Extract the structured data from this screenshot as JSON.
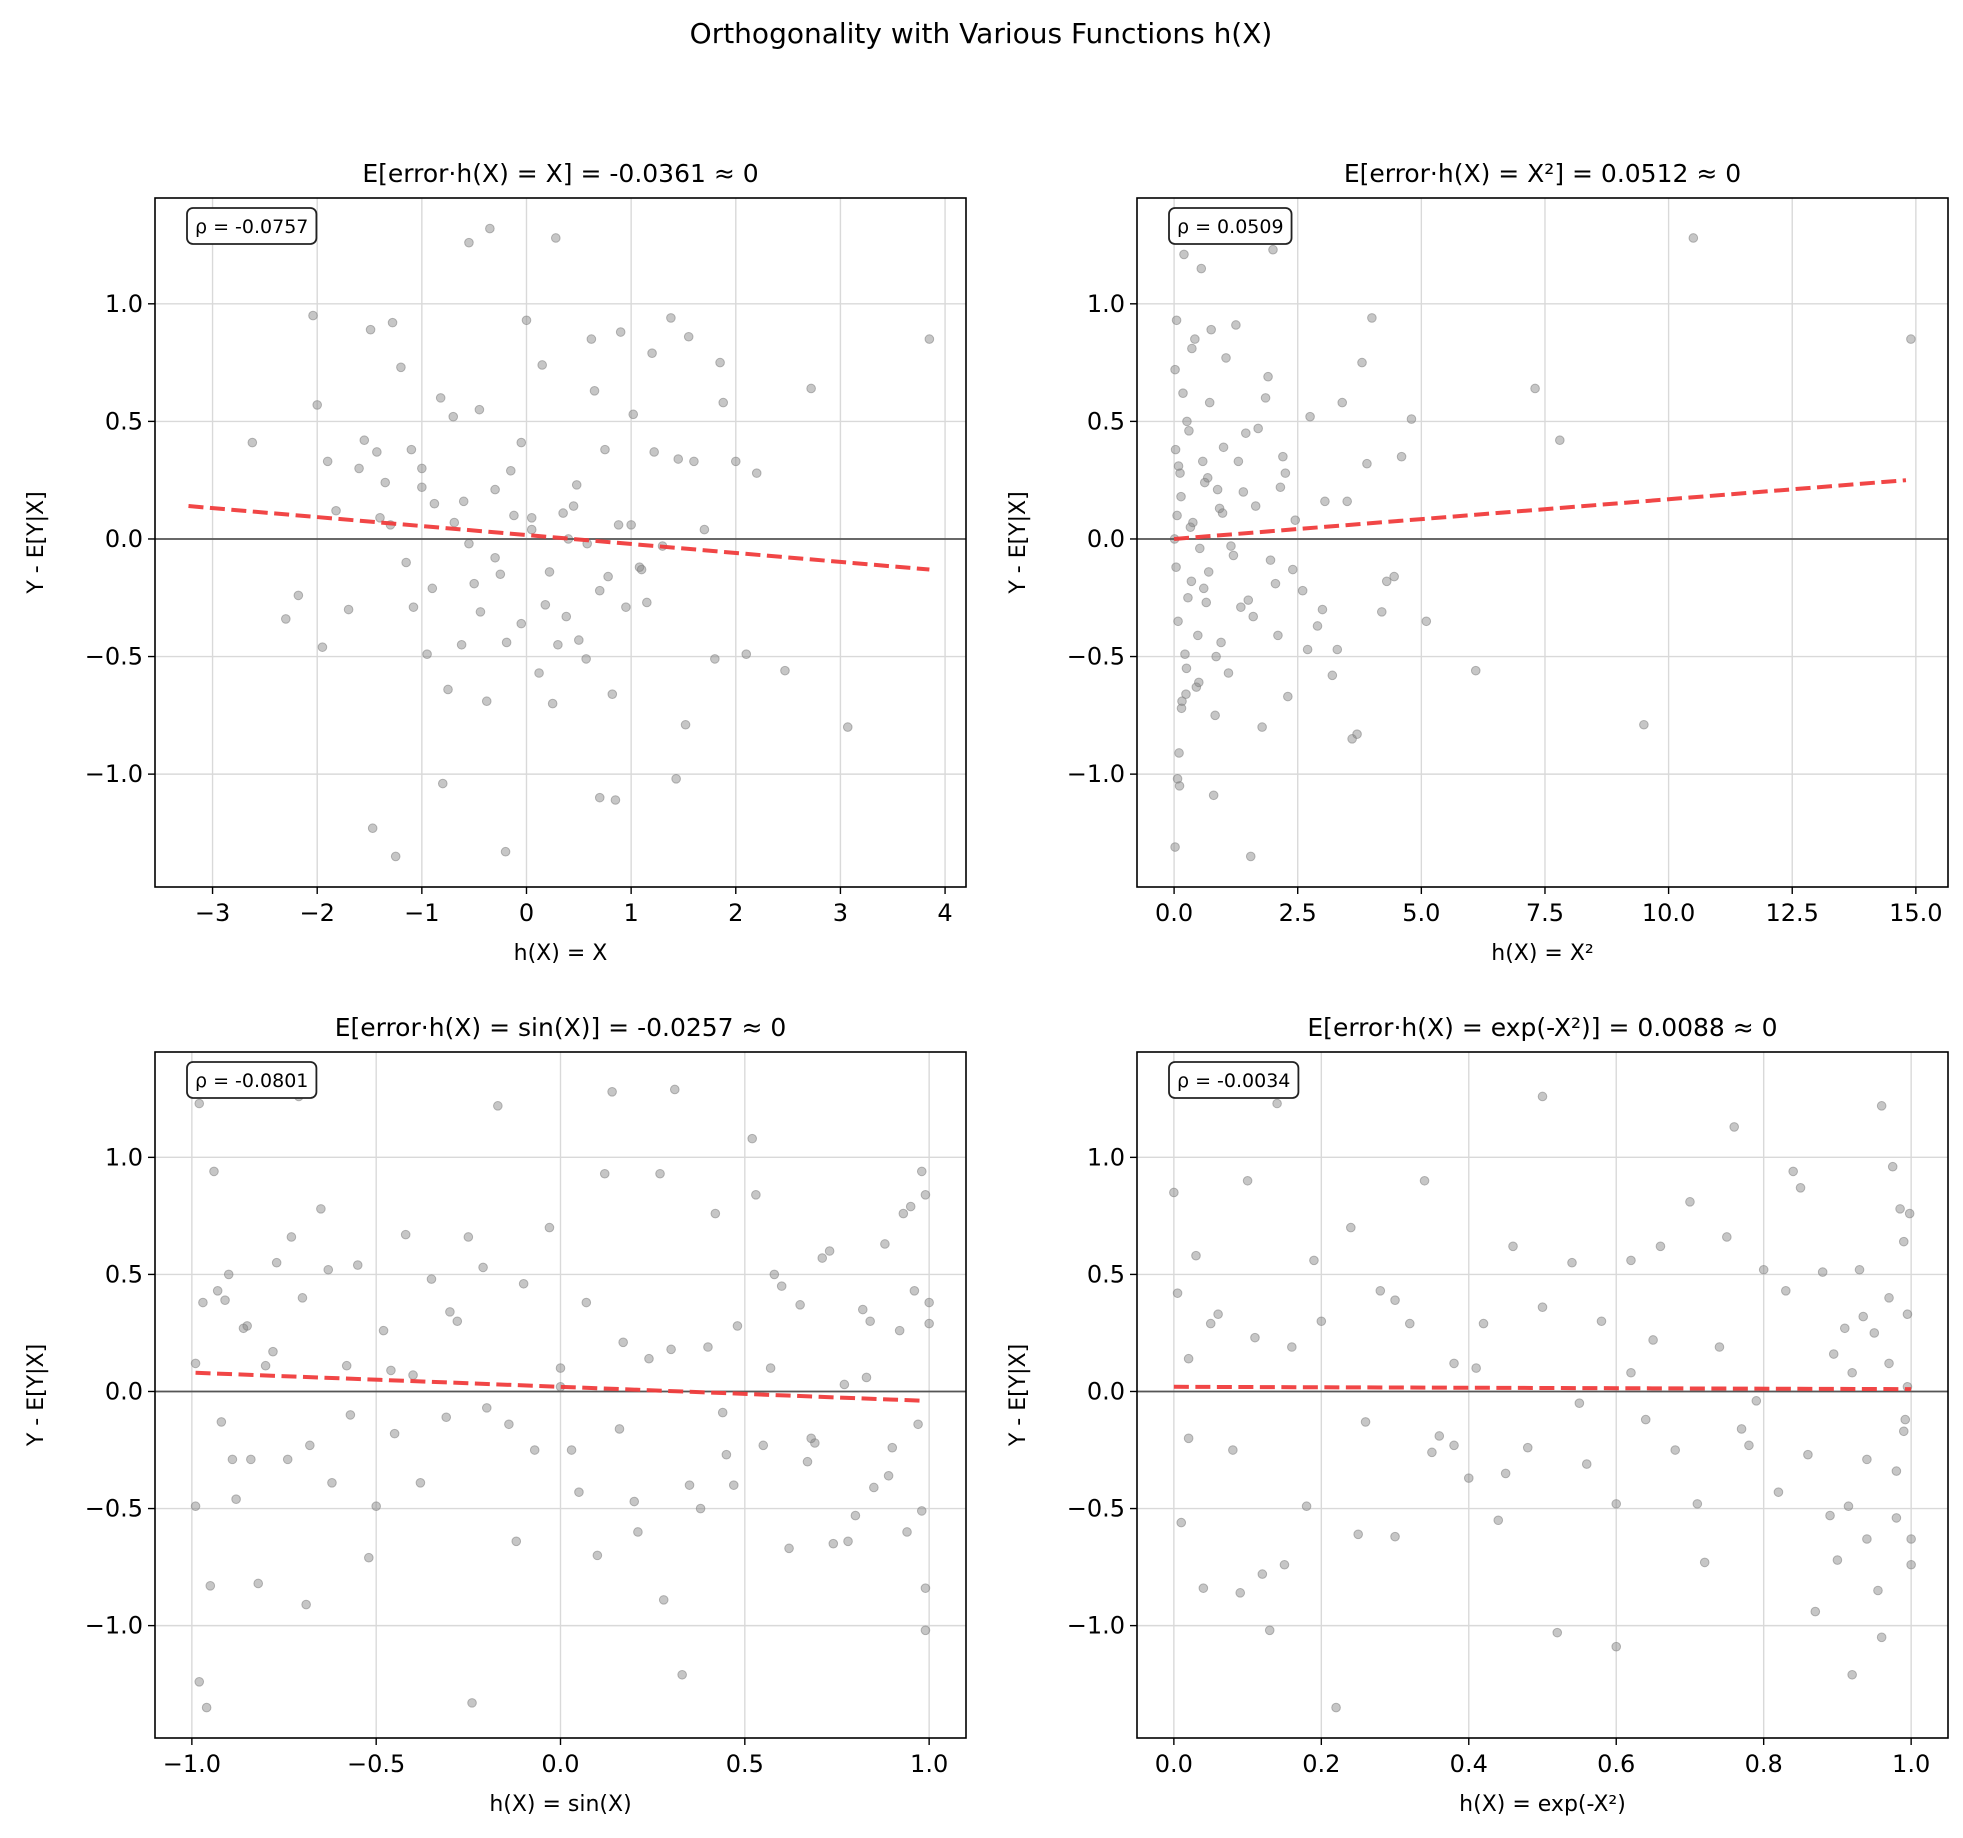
{
  "figure": {
    "title": "Orthogonality with Various Functions h(X)"
  },
  "colors": {
    "points": "#808080",
    "fit": "#f03c3c",
    "zero": "#555555",
    "grid": "#d9d9d9"
  },
  "chart_data": [
    {
      "type": "scatter",
      "title": "E[error·h(X) = X] = -0.0361 ≈ 0",
      "xlabel": "h(X) = X",
      "ylabel": "Y - E[Y|X]",
      "xlim": [
        -3.55,
        4.2
      ],
      "ylim": [
        -1.48,
        1.45
      ],
      "xticks": [
        -3,
        -2,
        -1,
        0,
        1,
        2,
        3,
        4
      ],
      "xtick_labels": [
        "−3",
        "−2",
        "−1",
        "0",
        "1",
        "2",
        "3",
        "4"
      ],
      "yticks": [
        -1.0,
        -0.5,
        0.0,
        0.5,
        1.0
      ],
      "ytick_labels": [
        "−1.0",
        "−0.5",
        "0.0",
        "0.5",
        "1.0"
      ],
      "annotation": "ρ = -0.0757",
      "fit_line": {
        "x": [
          -3.23,
          3.85
        ],
        "y": [
          0.14,
          -0.13
        ]
      },
      "points": {
        "x": [
          -2.62,
          -2.3,
          -2.18,
          -2.04,
          -2.0,
          -1.95,
          -1.9,
          -1.82,
          -1.7,
          -1.6,
          -1.55,
          -1.49,
          -1.43,
          -1.4,
          -1.35,
          -1.28,
          -1.2,
          -1.15,
          -1.08,
          -1.0,
          -0.95,
          -0.88,
          -0.82,
          -0.75,
          -0.69,
          -0.62,
          -0.55,
          -0.5,
          -0.44,
          -0.38,
          -0.3,
          -0.25,
          -0.19,
          -0.12,
          -0.05,
          0.0,
          0.05,
          0.12,
          0.18,
          0.25,
          0.3,
          0.38,
          0.45,
          0.5,
          0.57,
          0.62,
          0.7,
          0.75,
          0.82,
          0.88,
          0.95,
          1.02,
          1.08,
          1.15,
          1.22,
          1.3,
          1.38,
          1.45,
          1.52,
          1.6,
          1.7,
          1.8,
          1.88,
          2.0,
          2.1,
          2.2,
          2.47,
          2.72,
          3.07,
          3.85,
          -0.55,
          -0.35,
          0.28,
          -0.8,
          0.7,
          -1.47,
          -1.25,
          -0.2,
          0.85,
          1.43,
          0.15,
          -0.6,
          0.9,
          -1.1,
          0.35,
          -0.15,
          0.65,
          1.2,
          -0.9,
          0.05,
          1.0,
          -0.7,
          0.48,
          -0.3,
          1.55,
          -1.3,
          0.22,
          -0.45,
          0.78,
          1.85,
          -0.05,
          0.58,
          -1.0,
          0.4,
          1.1
        ],
        "y": [
          0.41,
          -0.34,
          -0.24,
          0.95,
          0.57,
          -0.46,
          0.33,
          0.12,
          -0.3,
          0.3,
          0.42,
          0.89,
          0.37,
          0.09,
          0.24,
          0.92,
          0.73,
          -0.1,
          -0.29,
          0.3,
          -0.49,
          0.15,
          0.6,
          -0.64,
          0.07,
          -0.45,
          -0.02,
          -0.19,
          -0.31,
          -0.69,
          0.21,
          -0.15,
          -0.44,
          0.1,
          -0.36,
          0.93,
          0.09,
          -0.57,
          -0.28,
          -0.7,
          -0.45,
          -0.33,
          0.14,
          -0.43,
          -0.51,
          0.85,
          -0.22,
          0.38,
          -0.66,
          0.06,
          -0.29,
          0.53,
          -0.12,
          -0.27,
          0.37,
          -0.03,
          0.94,
          0.34,
          -0.79,
          0.33,
          0.04,
          -0.51,
          0.58,
          0.33,
          -0.49,
          0.28,
          -0.56,
          0.64,
          -0.8,
          0.85,
          1.26,
          1.32,
          1.28,
          -1.04,
          -1.1,
          -1.23,
          -1.35,
          -1.33,
          -1.11,
          -1.02,
          0.74,
          0.16,
          0.88,
          0.38,
          0.11,
          0.29,
          0.63,
          0.79,
          -0.21,
          0.04,
          0.06,
          0.52,
          0.23,
          -0.08,
          0.86,
          0.06,
          -0.14,
          0.55,
          -0.16,
          0.75,
          0.41,
          -0.02,
          0.22,
          0.0,
          -0.13
        ]
      }
    },
    {
      "type": "scatter",
      "title": "E[error·h(X) = X²] = 0.0512 ≈ 0",
      "xlabel": "h(X) = X²",
      "ylabel": "Y - E[Y|X]",
      "xlim": [
        -0.75,
        15.65
      ],
      "ylim": [
        -1.48,
        1.45
      ],
      "xticks": [
        0.0,
        2.5,
        5.0,
        7.5,
        10.0,
        12.5,
        15.0
      ],
      "xtick_labels": [
        "0.0",
        "2.5",
        "5.0",
        "7.5",
        "10.0",
        "12.5",
        "15.0"
      ],
      "yticks": [
        -1.0,
        -0.5,
        0.0,
        0.5,
        1.0
      ],
      "ytick_labels": [
        "−1.0",
        "−0.5",
        "0.0",
        "0.5",
        "1.0"
      ],
      "annotation": "ρ = 0.0509",
      "fit_line": {
        "x": [
          0.0,
          14.8
        ],
        "y": [
          0.0,
          0.25
        ]
      },
      "points": {
        "x": [
          0.02,
          0.05,
          0.08,
          0.12,
          0.15,
          0.2,
          0.25,
          0.3,
          0.35,
          0.42,
          0.5,
          0.58,
          0.65,
          0.72,
          0.8,
          0.88,
          0.95,
          1.05,
          1.15,
          1.25,
          1.35,
          1.45,
          1.55,
          1.65,
          1.78,
          1.9,
          2.0,
          2.1,
          2.2,
          2.3,
          2.45,
          2.6,
          2.75,
          2.9,
          3.05,
          3.2,
          3.4,
          3.6,
          3.8,
          4.0,
          4.2,
          4.45,
          4.8,
          5.1,
          6.1,
          7.3,
          7.8,
          9.5,
          10.5,
          14.9,
          0.03,
          0.1,
          0.18,
          0.06,
          0.22,
          0.04,
          0.14,
          0.28,
          0.01,
          0.09,
          0.33,
          0.45,
          0.55,
          0.62,
          0.7,
          0.85,
          1.0,
          1.2,
          1.4,
          1.6,
          1.85,
          2.05,
          2.25,
          0.07,
          0.16,
          0.26,
          0.38,
          0.48,
          0.6,
          0.75,
          0.92,
          1.1,
          1.3,
          1.5,
          1.7,
          1.95,
          2.15,
          2.4,
          2.7,
          3.0,
          3.3,
          3.5,
          3.7,
          3.9,
          4.3,
          4.6,
          0.02,
          0.11,
          0.24,
          0.36,
          0.52,
          0.68,
          0.83,
          0.98
        ],
        "y": [
          0.72,
          0.93,
          -0.35,
          0.28,
          -0.72,
          1.21,
          -0.55,
          0.46,
          -0.18,
          0.85,
          -0.61,
          0.33,
          -0.27,
          0.58,
          -1.09,
          0.21,
          -0.44,
          0.77,
          -0.03,
          0.91,
          -0.29,
          0.45,
          -1.35,
          0.14,
          -0.8,
          0.69,
          1.23,
          -0.41,
          0.35,
          -0.67,
          0.08,
          -0.22,
          0.52,
          -0.37,
          0.16,
          -0.58,
          0.58,
          -0.85,
          0.75,
          0.94,
          -0.31,
          -0.16,
          0.51,
          -0.35,
          -0.56,
          0.64,
          0.42,
          -0.79,
          1.28,
          0.85,
          0.38,
          -0.91,
          0.62,
          0.1,
          -0.49,
          -0.12,
          0.18,
          -0.25,
          0.0,
          0.31,
          0.05,
          -0.63,
          1.15,
          0.24,
          -0.14,
          -0.5,
          0.39,
          -0.07,
          0.2,
          -0.33,
          0.6,
          -0.19,
          0.28,
          -1.02,
          -0.69,
          0.5,
          0.07,
          -0.41,
          -0.21,
          0.89,
          0.13,
          -0.57,
          0.33,
          -0.26,
          0.47,
          -0.09,
          0.22,
          -0.13,
          -0.47,
          -0.3,
          -0.47,
          0.16,
          -0.83,
          0.32,
          -0.18,
          0.35,
          -1.31,
          -1.05,
          -0.66,
          0.81,
          -0.04,
          0.26,
          -0.75,
          0.11
        ]
      }
    },
    {
      "type": "scatter",
      "title": "E[error·h(X) = sin(X)] = -0.0257 ≈ 0",
      "xlabel": "h(X) = sin(X)",
      "ylabel": "Y - E[Y|X]",
      "xlim": [
        -1.1,
        1.1
      ],
      "ylim": [
        -1.48,
        1.45
      ],
      "xticks": [
        -1.0,
        -0.5,
        0.0,
        0.5,
        1.0
      ],
      "xtick_labels": [
        "−1.0",
        "−0.5",
        "0.0",
        "0.5",
        "1.0"
      ],
      "yticks": [
        -1.0,
        -0.5,
        0.0,
        0.5,
        1.0
      ],
      "ytick_labels": [
        "−1.0",
        "−0.5",
        "0.0",
        "0.5",
        "1.0"
      ],
      "annotation": "ρ = -0.0801",
      "fit_line": {
        "x": [
          -0.99,
          0.99
        ],
        "y": [
          0.08,
          -0.04
        ]
      },
      "points": {
        "x": [
          -0.99,
          -0.98,
          -0.97,
          -0.95,
          -0.94,
          -0.92,
          -0.9,
          -0.88,
          -0.85,
          -0.82,
          -0.8,
          -0.77,
          -0.74,
          -0.71,
          -0.68,
          -0.65,
          -0.62,
          -0.58,
          -0.55,
          -0.52,
          -0.48,
          -0.45,
          -0.42,
          -0.38,
          -0.35,
          -0.31,
          -0.28,
          -0.24,
          -0.21,
          -0.17,
          -0.14,
          -0.1,
          -0.07,
          -0.03,
          0.0,
          0.03,
          0.07,
          0.1,
          0.14,
          0.17,
          0.21,
          0.24,
          0.28,
          0.31,
          0.35,
          0.38,
          0.42,
          0.45,
          0.48,
          0.52,
          0.55,
          0.58,
          0.62,
          0.65,
          0.68,
          0.71,
          0.74,
          0.77,
          0.8,
          0.82,
          0.85,
          0.88,
          0.9,
          0.92,
          0.94,
          0.95,
          0.97,
          0.98,
          0.99,
          1.0,
          -0.99,
          -0.96,
          -0.93,
          -0.89,
          -0.86,
          -0.73,
          -0.69,
          -0.63,
          -0.5,
          -0.46,
          -0.3,
          -0.25,
          -0.12,
          0.05,
          0.12,
          0.2,
          0.27,
          0.33,
          0.4,
          0.47,
          0.53,
          0.6,
          0.67,
          0.73,
          0.78,
          0.84,
          0.89,
          0.96,
          0.99,
          1.0,
          -0.98,
          -0.91,
          -0.84,
          -0.78,
          -0.7,
          -0.57,
          -0.4,
          -0.2,
          0.0,
          0.16,
          0.3,
          0.44,
          0.57,
          0.69,
          0.83,
          0.93,
          0.98,
          0.99
        ],
        "y": [
          -0.49,
          1.23,
          0.38,
          -0.83,
          0.94,
          -0.13,
          0.5,
          -0.46,
          0.28,
          -0.82,
          0.11,
          0.55,
          -0.29,
          1.26,
          -0.23,
          0.78,
          -0.39,
          0.11,
          0.54,
          -0.71,
          0.26,
          -0.18,
          0.67,
          -0.39,
          0.48,
          -0.11,
          0.3,
          -1.33,
          0.53,
          1.22,
          -0.14,
          0.46,
          -0.25,
          0.7,
          0.1,
          -0.25,
          0.38,
          -0.7,
          1.28,
          0.21,
          -0.6,
          0.14,
          -0.89,
          1.29,
          -0.4,
          -0.5,
          0.76,
          -0.27,
          0.28,
          1.08,
          -0.23,
          0.5,
          -0.67,
          0.37,
          -0.2,
          0.57,
          -0.65,
          0.03,
          -0.53,
          0.35,
          -0.41,
          0.63,
          -0.24,
          0.26,
          -0.6,
          0.79,
          -0.14,
          0.94,
          -1.02,
          0.38,
          0.12,
          -1.35,
          0.43,
          -0.29,
          0.27,
          0.66,
          -0.91,
          0.52,
          -0.49,
          0.09,
          0.34,
          0.66,
          -0.64,
          -0.43,
          0.93,
          -0.47,
          0.93,
          -1.21,
          0.19,
          -0.4,
          0.84,
          0.45,
          -0.3,
          0.6,
          -0.64,
          0.3,
          -0.36,
          0.43,
          -0.84,
          0.29,
          -1.24,
          0.39,
          -0.29,
          0.17,
          0.4,
          -0.1,
          0.07,
          -0.07,
          0.02,
          -0.16,
          0.18,
          -0.09,
          0.1,
          -0.22,
          0.06,
          0.76,
          -0.51,
          0.84
        ]
      }
    },
    {
      "type": "scatter",
      "title": "E[error·h(X) = exp(-X²)] = 0.0088 ≈ 0",
      "xlabel": "h(X) = exp(-X²)",
      "ylabel": "Y - E[Y|X]",
      "xlim": [
        -0.05,
        1.05
      ],
      "ylim": [
        -1.48,
        1.45
      ],
      "xticks": [
        0.0,
        0.2,
        0.4,
        0.6,
        0.8,
        1.0
      ],
      "xtick_labels": [
        "0.0",
        "0.2",
        "0.4",
        "0.6",
        "0.8",
        "1.0"
      ],
      "yticks": [
        -1.0,
        -0.5,
        0.0,
        0.5,
        1.0
      ],
      "ytick_labels": [
        "−1.0",
        "−0.5",
        "0.0",
        "0.5",
        "1.0"
      ],
      "annotation": "ρ = -0.0034",
      "fit_line": {
        "x": [
          0.0,
          1.0
        ],
        "y": [
          0.02,
          0.01
        ]
      },
      "points": {
        "x": [
          0.0,
          0.01,
          0.02,
          0.03,
          0.04,
          0.06,
          0.08,
          0.1,
          0.12,
          0.14,
          0.16,
          0.18,
          0.2,
          0.22,
          0.24,
          0.26,
          0.28,
          0.3,
          0.32,
          0.34,
          0.36,
          0.38,
          0.4,
          0.42,
          0.44,
          0.46,
          0.48,
          0.5,
          0.52,
          0.54,
          0.56,
          0.58,
          0.6,
          0.62,
          0.64,
          0.66,
          0.68,
          0.7,
          0.72,
          0.74,
          0.76,
          0.78,
          0.8,
          0.82,
          0.84,
          0.86,
          0.88,
          0.9,
          0.91,
          0.92,
          0.93,
          0.94,
          0.95,
          0.96,
          0.97,
          0.98,
          0.985,
          0.99,
          0.995,
          1.0,
          0.005,
          0.02,
          0.05,
          0.09,
          0.11,
          0.15,
          0.19,
          0.25,
          0.3,
          0.35,
          0.41,
          0.45,
          0.5,
          0.55,
          0.6,
          0.65,
          0.71,
          0.75,
          0.79,
          0.85,
          0.89,
          0.92,
          0.94,
          0.96,
          0.97,
          0.98,
          0.99,
          0.995,
          1.0,
          0.998,
          0.992,
          0.975,
          0.955,
          0.935,
          0.915,
          0.895,
          0.87,
          0.83,
          0.77,
          0.62,
          0.38,
          0.13
        ],
        "y": [
          0.85,
          -0.56,
          0.14,
          0.58,
          -0.84,
          0.33,
          -0.25,
          0.9,
          -0.78,
          1.23,
          0.19,
          -0.49,
          0.3,
          -1.35,
          0.7,
          -0.13,
          0.43,
          -0.62,
          0.29,
          0.9,
          -0.19,
          0.12,
          -0.37,
          0.29,
          -0.55,
          0.62,
          -0.24,
          0.36,
          -1.03,
          0.55,
          -0.31,
          0.3,
          -0.48,
          0.08,
          -0.12,
          0.62,
          -0.25,
          0.81,
          -0.73,
          0.19,
          1.13,
          -0.23,
          0.52,
          -0.43,
          0.94,
          -0.27,
          0.51,
          -0.72,
          0.27,
          -1.21,
          0.52,
          -0.29,
          0.25,
          -1.05,
          0.12,
          -0.54,
          0.78,
          -0.17,
          0.33,
          -0.63,
          0.42,
          -0.2,
          0.29,
          -0.86,
          0.23,
          -0.74,
          0.56,
          -0.61,
          0.39,
          -0.26,
          0.1,
          -0.35,
          1.26,
          -0.05,
          -1.09,
          0.22,
          -0.48,
          0.66,
          -0.04,
          0.87,
          -0.53,
          0.08,
          -0.63,
          1.22,
          0.4,
          -0.34,
          0.64,
          0.02,
          -0.74,
          0.76,
          -0.12,
          0.96,
          -0.85,
          0.32,
          -0.49,
          0.16,
          -0.94,
          0.43,
          -0.16,
          0.56,
          -0.23,
          -1.02
        ]
      }
    }
  ]
}
